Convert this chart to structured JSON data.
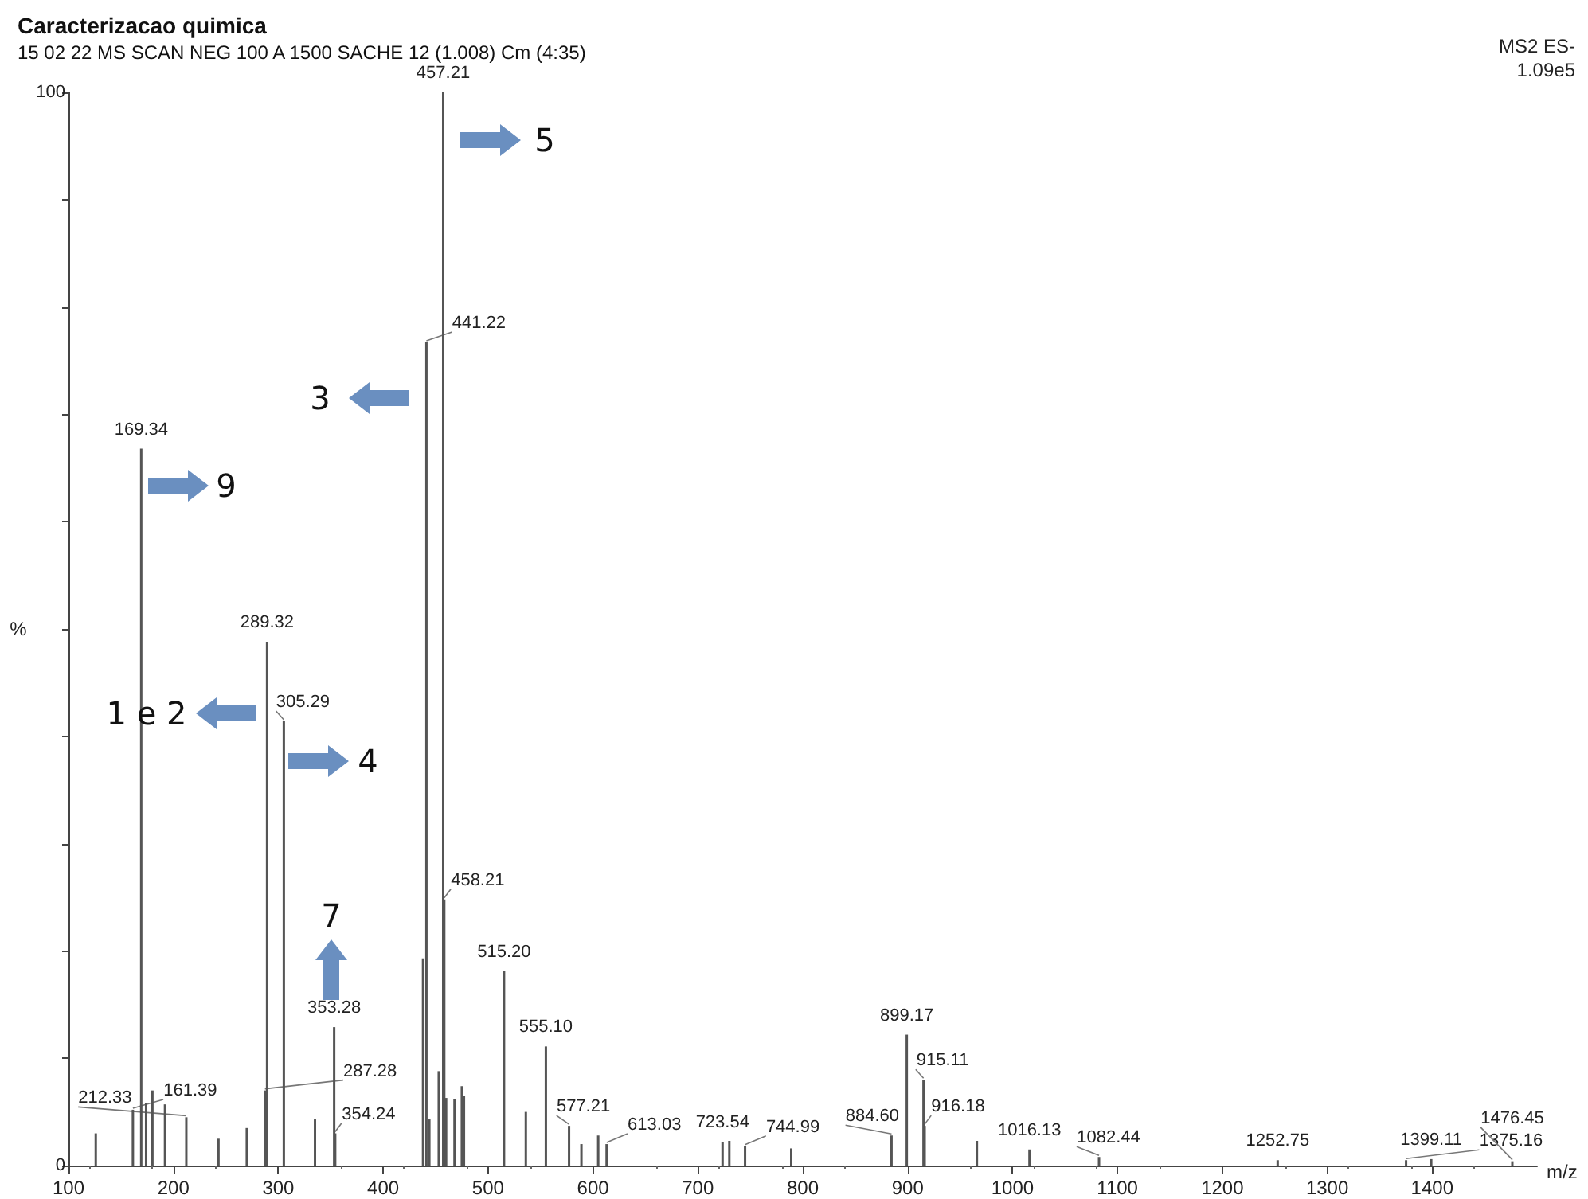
{
  "chart_data": {
    "type": "bar",
    "title": "Caracterizacao quimica",
    "subtitle": "15 02 22 MS SCAN NEG 100 A 1500 SACHE 12 (1.008) Cm (4:35)",
    "xlabel": "m/z",
    "ylabel": "%",
    "x": [
      126,
      161.39,
      169.34,
      174,
      180,
      192,
      212.33,
      243,
      270,
      287.28,
      289.32,
      305.29,
      335,
      353.28,
      354.24,
      438,
      441.22,
      444,
      453,
      457.21,
      458.21,
      460,
      468,
      475,
      477,
      515.2,
      536,
      555.1,
      577.21,
      589,
      605,
      613.03,
      723.54,
      730,
      744.99,
      789,
      884.6,
      899.17,
      915.11,
      916.18,
      966,
      1016.13,
      1082.44,
      1252.75,
      1375.16,
      1399.11,
      1476.45
    ],
    "values": [
      3.0,
      5.2,
      66.8,
      5.8,
      7.0,
      5.7,
      4.5,
      2.5,
      3.5,
      7.0,
      48.8,
      41.4,
      4.3,
      12.9,
      3.0,
      19.3,
      76.7,
      4.3,
      8.8,
      100,
      24.8,
      6.3,
      6.2,
      7.4,
      6.5,
      18.1,
      5.0,
      11.1,
      3.7,
      2.0,
      2.8,
      2.0,
      2.2,
      2.3,
      1.8,
      1.6,
      2.8,
      12.2,
      8.0,
      3.7,
      2.3,
      1.5,
      0.8,
      0.5,
      0.5,
      0.6,
      0.4
    ],
    "color": "#555555",
    "xlim": [
      100,
      1500
    ],
    "xticks": [
      100,
      200,
      300,
      400,
      500,
      600,
      700,
      800,
      900,
      1000,
      1100,
      1200,
      1300,
      1400
    ],
    "ylim": [
      0,
      100
    ],
    "yticks": [
      0,
      {
        "value": 10,
        "label": null
      },
      {
        "value": 20,
        "label": null
      },
      {
        "value": 30,
        "label": null
      },
      {
        "value": 40,
        "label": null
      },
      {
        "value": 50,
        "label": null
      },
      {
        "value": 60,
        "label": null
      },
      {
        "value": 70,
        "label": null
      },
      {
        "value": 80,
        "label": null
      },
      {
        "value": 90,
        "label": null
      },
      100
    ],
    "grid": false,
    "annotations": [
      "MS2 ES-",
      "1.09e5",
      "5",
      "3",
      "9",
      "1 e 2",
      "4",
      "7",
      {
        "text": "161.39",
        "x": 161.39,
        "y": 5.2
      },
      {
        "text": "169.34",
        "x": 169.34,
        "y": 66.8
      },
      {
        "text": "212.33",
        "x": 212.33,
        "y": 4.5
      },
      {
        "text": "287.28",
        "x": 287.28,
        "y": 7.0
      },
      {
        "text": "289.32",
        "x": 289.32,
        "y": 48.8
      },
      {
        "text": "305.29",
        "x": 305.29,
        "y": 41.4
      },
      {
        "text": "353.28",
        "x": 353.28,
        "y": 12.9
      },
      {
        "text": "354.24",
        "x": 354.24,
        "y": 3.0
      },
      {
        "text": "441.22",
        "x": 441.22,
        "y": 76.7
      },
      {
        "text": "457.21",
        "x": 457.21,
        "y": 100
      },
      {
        "text": "458.21",
        "x": 458.21,
        "y": 24.8
      },
      {
        "text": "515.20",
        "x": 515.2,
        "y": 18.1
      },
      {
        "text": "555.10",
        "x": 555.1,
        "y": 11.1
      },
      {
        "text": "577.21",
        "x": 577.21,
        "y": 3.7
      },
      {
        "text": "613.03",
        "x": 613.03,
        "y": 2.0
      },
      {
        "text": "723.54",
        "x": 723.54,
        "y": 2.2
      },
      {
        "text": "744.99",
        "x": 744.99,
        "y": 1.8
      },
      {
        "text": "884.60",
        "x": 884.6,
        "y": 2.8
      },
      {
        "text": "899.17",
        "x": 899.17,
        "y": 12.2
      },
      {
        "text": "915.11",
        "x": 915.11,
        "y": 8.0
      },
      {
        "text": "916.18",
        "x": 916.18,
        "y": 3.7
      },
      {
        "text": "1016.13",
        "x": 1016.13,
        "y": 1.5
      },
      {
        "text": "1082.44",
        "x": 1082.44,
        "y": 0.8
      },
      {
        "text": "1252.75",
        "x": 1252.75,
        "y": 0.5
      },
      {
        "text": "1375.16",
        "x": 1375.16,
        "y": 0.5
      },
      {
        "text": "1399.11",
        "x": 1399.11,
        "y": 0.6
      },
      {
        "text": "1476.45",
        "x": 1476.45,
        "y": 0.4
      }
    ]
  }
}
